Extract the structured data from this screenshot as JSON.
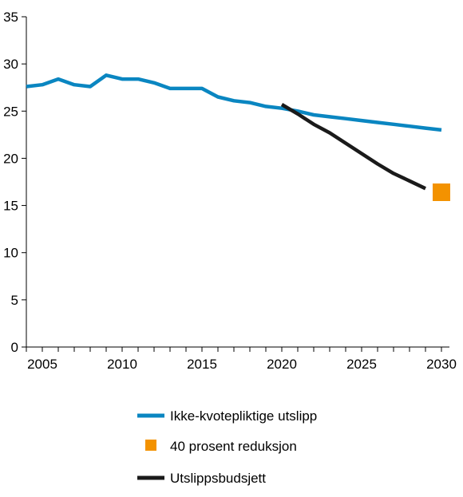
{
  "chart_data": {
    "type": "line",
    "title": "",
    "xlabel": "",
    "ylabel": "",
    "xlim": [
      2004,
      2030.5
    ],
    "ylim": [
      0,
      35
    ],
    "x_ticks": [
      "2005",
      "2010",
      "2015",
      "2020",
      "2025",
      "2030"
    ],
    "y_ticks": [
      "0",
      "5",
      "10",
      "15",
      "20",
      "25",
      "30",
      "35"
    ],
    "grid": false,
    "legend_position": "bottom",
    "series": [
      {
        "name": "Ikke-kvotepliktige utslipp",
        "kind": "line",
        "color": "#0a86c1",
        "points": [
          [
            2004,
            27.6
          ],
          [
            2005,
            27.8
          ],
          [
            2006,
            28.4
          ],
          [
            2007,
            27.8
          ],
          [
            2008,
            27.6
          ],
          [
            2009,
            28.8
          ],
          [
            2010,
            28.4
          ],
          [
            2011,
            28.4
          ],
          [
            2012,
            28.0
          ],
          [
            2013,
            27.4
          ],
          [
            2014,
            27.4
          ],
          [
            2015,
            27.4
          ],
          [
            2016,
            26.5
          ],
          [
            2017,
            26.1
          ],
          [
            2018,
            25.9
          ],
          [
            2019,
            25.5
          ],
          [
            2020,
            25.3
          ],
          [
            2021,
            25.0
          ],
          [
            2022,
            24.6
          ],
          [
            2023,
            24.4
          ],
          [
            2024,
            24.2
          ],
          [
            2025,
            24.0
          ],
          [
            2026,
            23.8
          ],
          [
            2027,
            23.6
          ],
          [
            2028,
            23.4
          ],
          [
            2029,
            23.2
          ],
          [
            2030,
            23.0
          ]
        ]
      },
      {
        "name": "40 prosent reduksjon",
        "kind": "marker",
        "color": "#f39200",
        "points": [
          [
            2030,
            16.4
          ]
        ]
      },
      {
        "name": "Utslippsbudsjett",
        "kind": "line",
        "color": "#1a1a1a",
        "points": [
          [
            2020,
            25.7
          ],
          [
            2021,
            24.7
          ],
          [
            2022,
            23.6
          ],
          [
            2023,
            22.7
          ],
          [
            2024,
            21.6
          ],
          [
            2025,
            20.5
          ],
          [
            2026,
            19.4
          ],
          [
            2027,
            18.4
          ],
          [
            2028,
            17.6
          ],
          [
            2029,
            16.8
          ]
        ]
      }
    ]
  }
}
